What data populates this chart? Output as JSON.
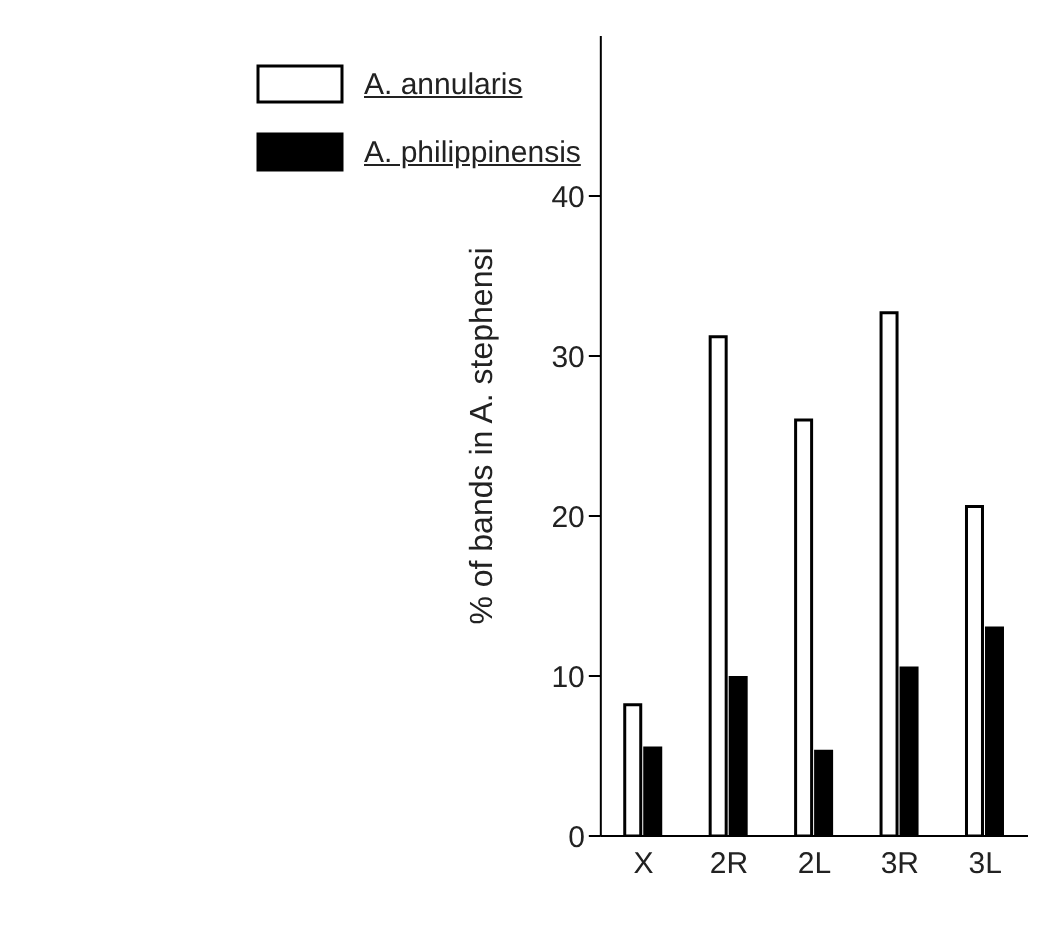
{
  "chart_data": {
    "type": "bar",
    "ylabel": "% of bands in A. stephensi",
    "categories": [
      "X",
      "2R",
      "2L",
      "3R",
      "3L"
    ],
    "series": [
      {
        "name": "A. annularis",
        "color": "#ffffff",
        "values": [
          8.2,
          31.2,
          26.0,
          32.7,
          20.6
        ]
      },
      {
        "name": "A. philippinensis",
        "color": "#000000",
        "values": [
          5.5,
          9.9,
          5.3,
          10.5,
          13.0
        ]
      }
    ],
    "ylim": [
      0,
      50
    ],
    "yticks": [
      0,
      10,
      20,
      30,
      40
    ],
    "legend": "top left",
    "grid": false
  }
}
